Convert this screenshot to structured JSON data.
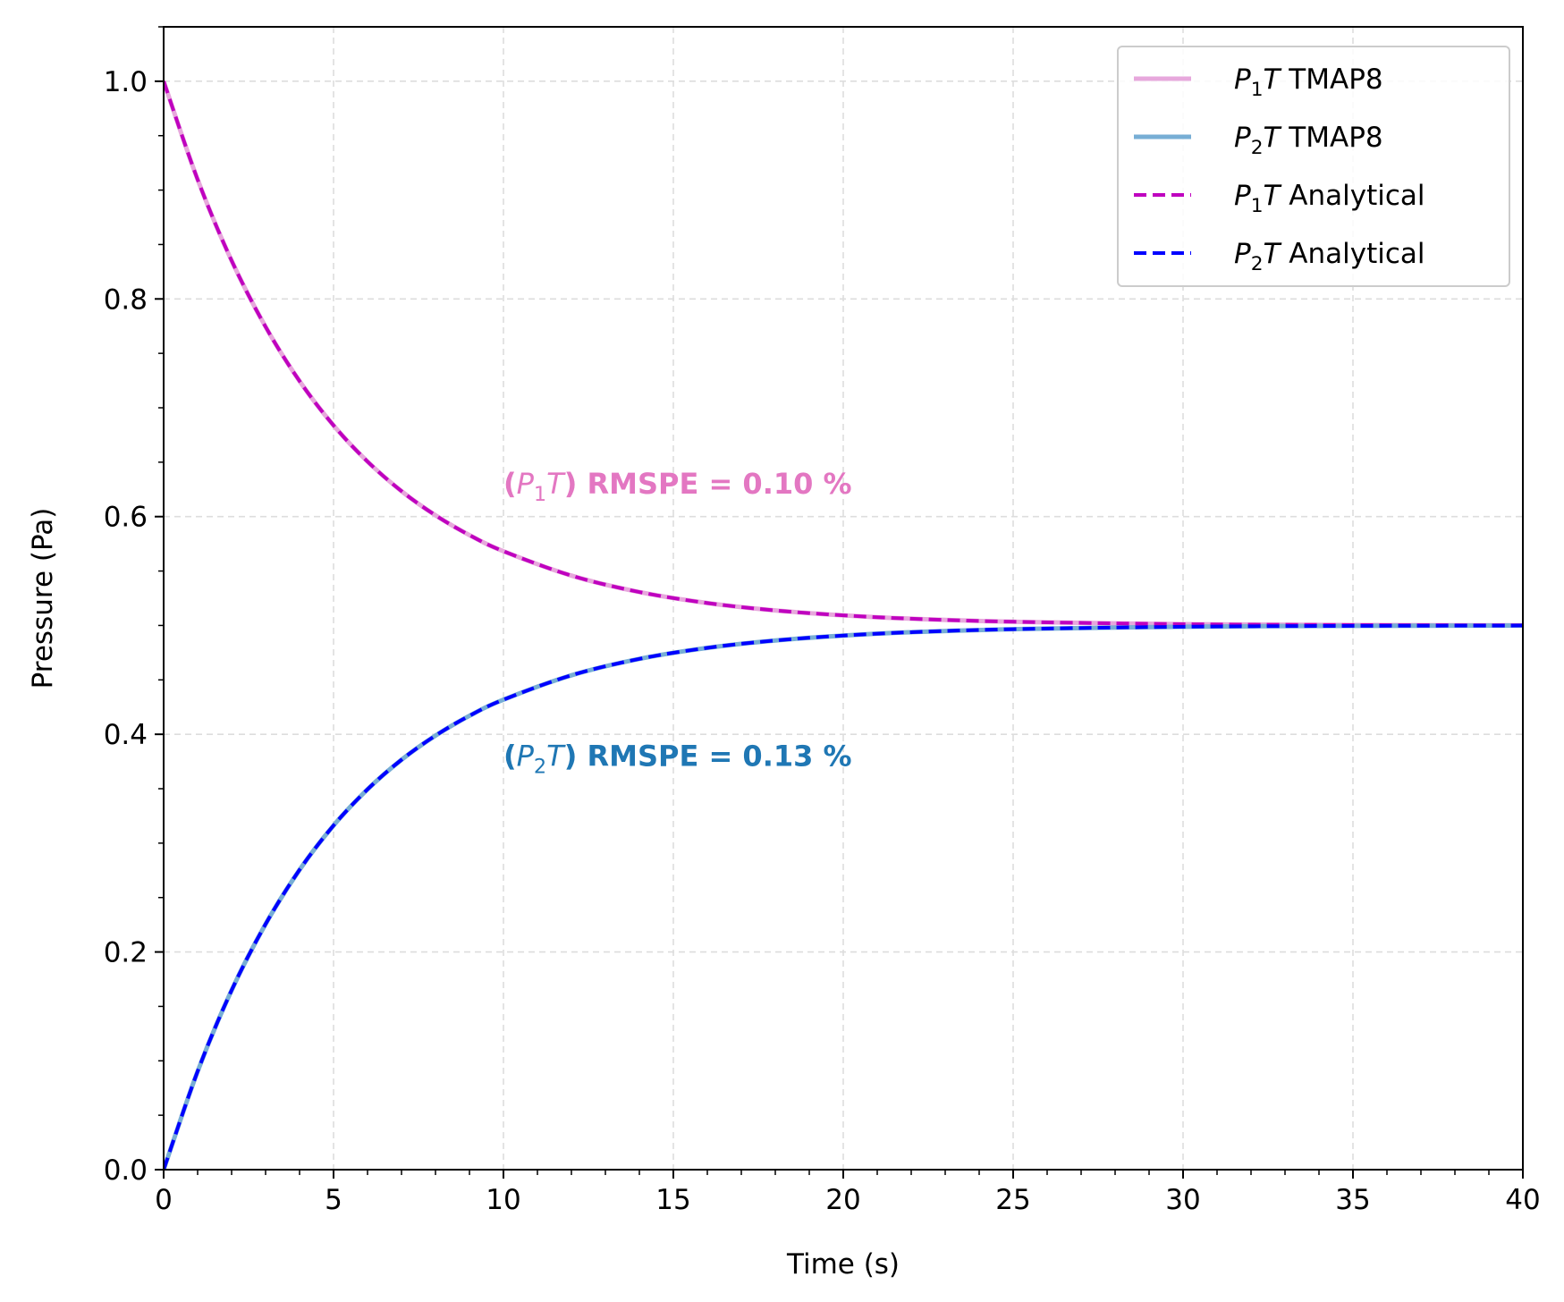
{
  "chart_data": {
    "type": "line",
    "title": "",
    "xlabel": "Time (s)",
    "ylabel": "Pressure (Pa)",
    "xlim": [
      0,
      40
    ],
    "ylim": [
      0,
      1.05
    ],
    "xticks": [
      0,
      5,
      10,
      15,
      20,
      25,
      30,
      35,
      40
    ],
    "xtick_labels": [
      "0",
      "5",
      "10",
      "15",
      "20",
      "25",
      "30",
      "35",
      "40"
    ],
    "yticks": [
      0.0,
      0.2,
      0.4,
      0.6,
      0.8,
      1.0
    ],
    "ytick_labels": [
      "0.0",
      "0.2",
      "0.4",
      "0.6",
      "0.8",
      "1.0"
    ],
    "grid": true,
    "grid_style": "dashed",
    "legend_position": "top-right",
    "x": [
      0,
      1,
      2,
      3,
      4,
      5,
      6,
      7,
      8,
      9,
      10,
      12,
      14,
      16,
      18,
      20,
      22,
      25,
      30,
      35,
      40
    ],
    "series": [
      {
        "name": "TMAP8",
        "symbol": "P",
        "subscript": "1",
        "italic_suffix": "T",
        "color": "#e7a8dc",
        "dash": "solid",
        "values": [
          1.0,
          0.9097,
          0.8352,
          0.7744,
          0.7245,
          0.6838,
          0.6506,
          0.6234,
          0.6012,
          0.583,
          0.5682,
          0.5458,
          0.5307,
          0.5206,
          0.5138,
          0.5093,
          0.5062,
          0.5034,
          0.5012,
          0.5004,
          0.5001
        ]
      },
      {
        "name": "TMAP8",
        "symbol": "P",
        "subscript": "2",
        "italic_suffix": "T",
        "color": "#77aed5",
        "dash": "solid",
        "values": [
          0.0,
          0.0903,
          0.1648,
          0.2256,
          0.2755,
          0.3162,
          0.3494,
          0.3766,
          0.3988,
          0.417,
          0.4318,
          0.4542,
          0.4693,
          0.4794,
          0.4862,
          0.4907,
          0.4938,
          0.4966,
          0.4988,
          0.4996,
          0.4999
        ]
      },
      {
        "name": "Analytical",
        "symbol": "P",
        "subscript": "1",
        "italic_suffix": "T",
        "color": "#bf00bf",
        "dash": "dashed",
        "values": [
          1.0,
          0.9097,
          0.8352,
          0.7744,
          0.7245,
          0.6838,
          0.6506,
          0.6234,
          0.6012,
          0.583,
          0.5682,
          0.5458,
          0.5307,
          0.5206,
          0.5138,
          0.5093,
          0.5062,
          0.5034,
          0.5012,
          0.5004,
          0.5001
        ]
      },
      {
        "name": "Analytical",
        "symbol": "P",
        "subscript": "2",
        "italic_suffix": "T",
        "color": "#0000ff",
        "dash": "dashed",
        "values": [
          0.0,
          0.0903,
          0.1648,
          0.2256,
          0.2755,
          0.3162,
          0.3494,
          0.3766,
          0.3988,
          0.417,
          0.4318,
          0.4542,
          0.4693,
          0.4794,
          0.4862,
          0.4907,
          0.4938,
          0.4966,
          0.4988,
          0.4996,
          0.4999
        ]
      }
    ],
    "annotations": [
      {
        "prefix": "(",
        "symbol": "P",
        "subscript": "1",
        "italic_suffix": "T",
        "text": ") RMSPE = 0.10 %",
        "x": 10,
        "y": 0.63,
        "color": "#e377c2"
      },
      {
        "prefix": "(",
        "symbol": "P",
        "subscript": "2",
        "italic_suffix": "T",
        "text": ") RMSPE = 0.13 %",
        "x": 10,
        "y": 0.38,
        "color": "#1f77b4"
      }
    ]
  }
}
